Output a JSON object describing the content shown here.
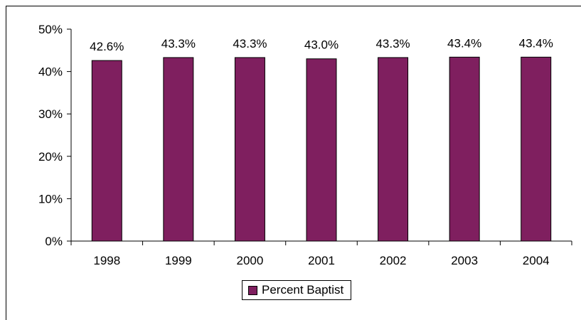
{
  "colors": {
    "bar": "#7f1f5f",
    "axis": "#000000"
  },
  "chart_data": {
    "type": "bar",
    "categories": [
      "1998",
      "1999",
      "2000",
      "2001",
      "2002",
      "2003",
      "2004"
    ],
    "series": [
      {
        "name": "Percent Baptist",
        "values": [
          42.6,
          43.3,
          43.3,
          43.0,
          43.3,
          43.4,
          43.4
        ],
        "data_labels": [
          "42.6%",
          "43.3%",
          "43.3%",
          "43.0%",
          "43.3%",
          "43.4%",
          "43.4%"
        ]
      }
    ],
    "ylim": [
      0,
      50
    ],
    "yticks": [
      0,
      10,
      20,
      30,
      40,
      50
    ],
    "ytick_labels": [
      "0%",
      "10%",
      "20%",
      "30%",
      "40%",
      "50%"
    ],
    "grid": false,
    "legend_position": "bottom"
  }
}
